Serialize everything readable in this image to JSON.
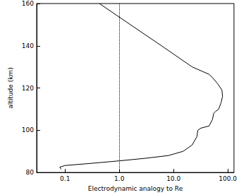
{
  "chart_data": {
    "type": "line",
    "x_label": "Electrodynamic analogy to Re",
    "y_label": "altitude (km)",
    "log": "x",
    "grid": false,
    "color": "#000000",
    "xlim": [
      0.03,
      130
    ],
    "ylim": [
      80,
      160
    ],
    "xticks": [
      {
        "value": 0.1,
        "label": "0.1"
      },
      {
        "value": 1,
        "label": "1.0"
      },
      {
        "value": 10,
        "label": "10.0"
      },
      {
        "value": 100,
        "label": "100.0"
      }
    ],
    "yticks": [
      80,
      100,
      120,
      140,
      160
    ],
    "reference_x": 1,
    "x": [
      0.085,
      0.08,
      0.1,
      0.3,
      1,
      3,
      8,
      15,
      22,
      27,
      28,
      32,
      45,
      52,
      55,
      60,
      68,
      75,
      80,
      78,
      65,
      52,
      45,
      22,
      6,
      1.6,
      0.43
    ],
    "values": [
      81.5,
      82.5,
      83.3,
      84.3,
      85.5,
      86.7,
      88,
      90,
      93,
      97,
      100,
      101,
      102,
      105,
      108,
      109,
      110,
      113,
      116,
      119,
      122,
      125,
      126.5,
      130,
      140,
      150,
      160
    ]
  }
}
